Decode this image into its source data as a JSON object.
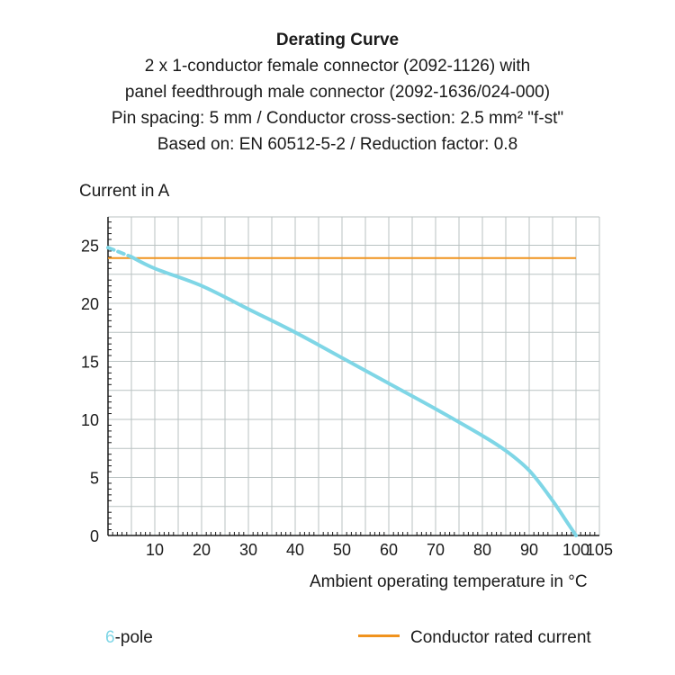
{
  "header": {
    "title": "Derating Curve",
    "line1": "2 x 1-conductor female connector (2092-1126) with",
    "line2": "panel feedthrough male connector (2092-1636/024-000)",
    "line3": "Pin spacing: 5 mm / Conductor cross-section: 2.5 mm² \"f-st\"",
    "line4": "Based on: EN 60512-5-2 / Reduction factor: 0.8"
  },
  "legend": {
    "pole_number": "6",
    "pole_suffix": "-pole",
    "rated": "Conductor rated current"
  },
  "colors": {
    "curve": "#7fd6e6",
    "rated": "#f0931e",
    "grid": "#b9c2c2"
  },
  "chart_data": {
    "type": "line",
    "xlabel": "Ambient operating temperature in °C",
    "ylabel": "Current in A",
    "xlim": [
      0,
      105
    ],
    "ylim": [
      0,
      25
    ],
    "x_ticks": [
      10,
      20,
      30,
      40,
      50,
      60,
      70,
      80,
      90,
      100,
      105
    ],
    "y_ticks": [
      0,
      5,
      10,
      15,
      20,
      25
    ],
    "grid": true,
    "series": [
      {
        "name": "6-pole",
        "dashed_segment": [
          [
            0,
            24.8
          ],
          [
            5,
            24.0
          ]
        ],
        "points": [
          [
            5,
            24.0
          ],
          [
            10,
            23.0
          ],
          [
            20,
            21.5
          ],
          [
            30,
            19.5
          ],
          [
            40,
            17.5
          ],
          [
            50,
            15.3
          ],
          [
            60,
            13.1
          ],
          [
            70,
            10.9
          ],
          [
            80,
            8.6
          ],
          [
            85,
            7.3
          ],
          [
            90,
            5.6
          ],
          [
            95,
            3.0
          ],
          [
            98,
            1.2
          ],
          [
            100,
            0
          ]
        ]
      },
      {
        "name": "Conductor rated current",
        "points": [
          [
            0,
            23.9
          ],
          [
            100,
            23.9
          ]
        ]
      }
    ]
  }
}
